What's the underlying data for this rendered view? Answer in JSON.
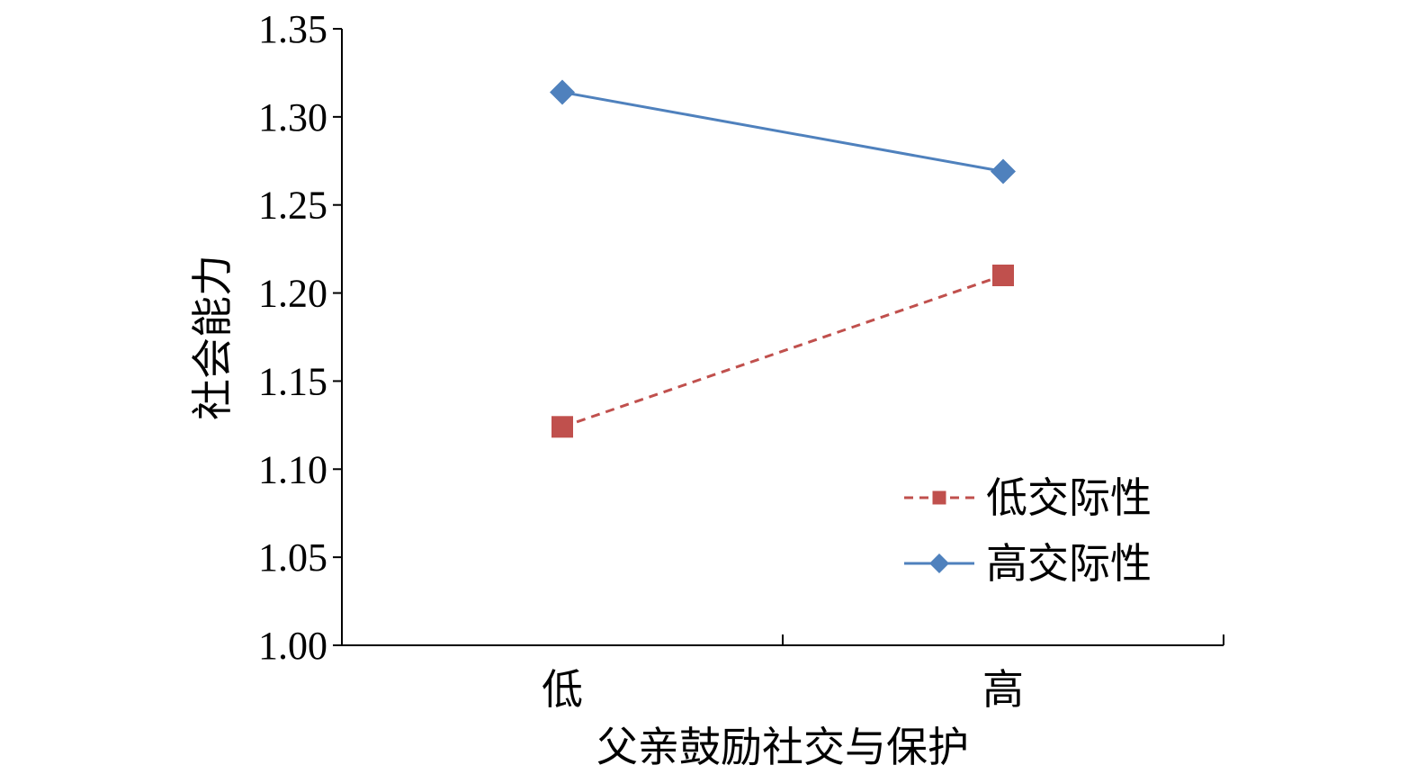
{
  "chart_data": {
    "type": "line",
    "categories": [
      "低",
      "高"
    ],
    "series": [
      {
        "name": "低交际性",
        "values": [
          1.124,
          1.21
        ],
        "color": "#c0504d",
        "marker": "square",
        "dashed": true
      },
      {
        "name": "高交际性",
        "values": [
          1.314,
          1.269
        ],
        "color": "#4f81bd",
        "marker": "diamond",
        "dashed": false
      }
    ],
    "yticks": [
      "1.00",
      "1.05",
      "1.10",
      "1.15",
      "1.20",
      "1.25",
      "1.30",
      "1.35"
    ],
    "ylim": [
      1.0,
      1.35
    ],
    "xlabel": "父亲鼓励社交与保护",
    "ylabel": "社会能力",
    "legend_position": "right"
  }
}
